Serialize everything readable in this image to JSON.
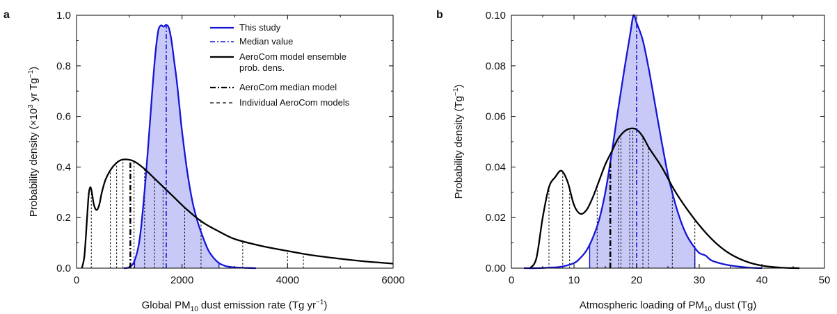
{
  "chart_data": [
    {
      "panel": "a",
      "type": "line",
      "xlabel": "Global PM10 dust emission rate (Tg yr⁻¹)",
      "xlabel_parts": [
        "Global PM",
        "10",
        " dust emission rate (Tg yr",
        "−1",
        ")"
      ],
      "ylabel": "Probability density (×10³ yr Tg⁻¹)",
      "ylabel_parts": [
        "Probability density (×10",
        "3",
        " yr Tg",
        "−1",
        ")"
      ],
      "xlim": [
        0,
        6000
      ],
      "ylim": [
        0,
        1.0
      ],
      "xticks": [
        0,
        2000,
        4000,
        6000
      ],
      "xtick_labels": [
        "0",
        "2000",
        "4000",
        "6000"
      ],
      "yticks": [
        0.0,
        0.2,
        0.4,
        0.6,
        0.8,
        1.0
      ],
      "ytick_labels": [
        "0.0",
        "0.2",
        "0.4",
        "0.6",
        "0.8",
        "1.0"
      ],
      "grid": false,
      "legend_position": "top-right",
      "legend": [
        {
          "label": "This study",
          "style": "blue-solid"
        },
        {
          "label": "Median value",
          "style": "blue-dashdot"
        },
        {
          "label": "AeroCom model ensemble",
          "label2": "prob. dens.",
          "style": "black-solid"
        },
        {
          "label": "AeroCom median model",
          "style": "black-dashdot"
        },
        {
          "label": "Individual AeroCom models",
          "style": "black-dashed"
        }
      ],
      "this_study": {
        "color": "#1515d8",
        "fill": "#c8c9f7",
        "shade_range": [
          1100,
          2700
        ],
        "x": [
          900,
          1000,
          1100,
          1200,
          1300,
          1400,
          1450,
          1500,
          1550,
          1600,
          1650,
          1700,
          1750,
          1800,
          1850,
          1900,
          1950,
          2000,
          2100,
          2200,
          2300,
          2400,
          2500,
          2600,
          2700,
          2800,
          2900,
          3000,
          3100,
          3200,
          3400
        ],
        "y": [
          0.0,
          0.004,
          0.03,
          0.12,
          0.33,
          0.6,
          0.74,
          0.86,
          0.94,
          0.96,
          0.955,
          0.962,
          0.95,
          0.9,
          0.82,
          0.74,
          0.64,
          0.54,
          0.38,
          0.26,
          0.18,
          0.12,
          0.07,
          0.04,
          0.02,
          0.01,
          0.005,
          0.003,
          0.002,
          0.001,
          0.0
        ]
      },
      "median_value": {
        "x": 1700,
        "y": 0.962,
        "color": "#1515d8"
      },
      "aerocom_ensemble": {
        "color": "#000000",
        "x": [
          100,
          150,
          200,
          230,
          260,
          290,
          330,
          380,
          430,
          480,
          550,
          650,
          750,
          850,
          950,
          1050,
          1150,
          1300,
          1500,
          1800,
          2100,
          2400,
          2700,
          3000,
          3500,
          4000,
          4500,
          5000,
          5500,
          6000
        ],
        "y": [
          0.0,
          0.05,
          0.2,
          0.29,
          0.32,
          0.3,
          0.25,
          0.23,
          0.25,
          0.3,
          0.35,
          0.39,
          0.415,
          0.428,
          0.43,
          0.426,
          0.415,
          0.39,
          0.35,
          0.29,
          0.23,
          0.18,
          0.145,
          0.115,
          0.088,
          0.068,
          0.05,
          0.037,
          0.026,
          0.018
        ]
      },
      "aerocom_median_model": {
        "x": 1020,
        "y": 0.43,
        "color": "#000000"
      },
      "individual_models_x": [
        280,
        640,
        760,
        880,
        1090,
        1290,
        1480,
        1640,
        2050,
        2360,
        3150,
        4000,
        4300
      ]
    },
    {
      "panel": "b",
      "type": "line",
      "xlabel": "Atmospheric loading of PM10 dust (Tg)",
      "xlabel_parts": [
        "Atmospheric loading of PM",
        "10",
        " dust (Tg)"
      ],
      "ylabel": "Probability density (Tg⁻¹)",
      "ylabel_parts": [
        "Probability density (Tg",
        "−1",
        ")"
      ],
      "xlim": [
        0,
        50
      ],
      "ylim": [
        0,
        0.1
      ],
      "xticks": [
        0,
        10,
        20,
        30,
        40,
        50
      ],
      "xtick_labels": [
        "0",
        "10",
        "20",
        "30",
        "40",
        "50"
      ],
      "yticks": [
        0.0,
        0.02,
        0.04,
        0.06,
        0.08,
        0.1
      ],
      "ytick_labels": [
        "0.00",
        "0.02",
        "0.04",
        "0.06",
        "0.08",
        "0.10"
      ],
      "grid": false,
      "this_study": {
        "color": "#1515d8",
        "fill": "#c8c9f7",
        "shade_range": [
          12.5,
          29.3
        ],
        "x": [
          2,
          4,
          6,
          8,
          10,
          11,
          12,
          13,
          14,
          15,
          16,
          17,
          18,
          19,
          19.5,
          20,
          21,
          22,
          23,
          24,
          25,
          26,
          27,
          28,
          29,
          30,
          31,
          32,
          34,
          36,
          38,
          40
        ],
        "y": [
          0.0,
          0.0,
          0.0002,
          0.0006,
          0.002,
          0.004,
          0.007,
          0.012,
          0.019,
          0.03,
          0.045,
          0.062,
          0.078,
          0.093,
          0.1,
          0.097,
          0.09,
          0.078,
          0.064,
          0.05,
          0.037,
          0.027,
          0.019,
          0.013,
          0.009,
          0.006,
          0.005,
          0.003,
          0.0015,
          0.0007,
          0.0002,
          0.0
        ]
      },
      "median_value": {
        "x": 20,
        "y": 0.097,
        "color": "#1515d8"
      },
      "aerocom_ensemble": {
        "color": "#000000",
        "x": [
          3,
          4,
          5,
          6,
          7,
          8,
          9,
          10,
          11,
          12,
          13,
          14,
          15,
          16,
          17,
          18,
          19,
          20,
          21,
          22,
          24,
          26,
          28,
          30,
          32,
          34,
          36,
          38,
          40,
          42,
          44,
          46
        ],
        "y": [
          0.0,
          0.004,
          0.02,
          0.032,
          0.036,
          0.0385,
          0.034,
          0.025,
          0.0215,
          0.023,
          0.028,
          0.0345,
          0.041,
          0.046,
          0.051,
          0.054,
          0.0552,
          0.0548,
          0.052,
          0.0475,
          0.04,
          0.031,
          0.0235,
          0.017,
          0.0115,
          0.0072,
          0.0042,
          0.0022,
          0.001,
          0.0004,
          0.0001,
          0.0
        ]
      },
      "aerocom_median_model": {
        "x": 15.8,
        "y": 0.042,
        "color": "#000000"
      },
      "individual_models_x": [
        6,
        8.2,
        9.3,
        13.7,
        17.1,
        17.5,
        18.9,
        19.4,
        21,
        21.9,
        25.7,
        29.3
      ]
    }
  ]
}
